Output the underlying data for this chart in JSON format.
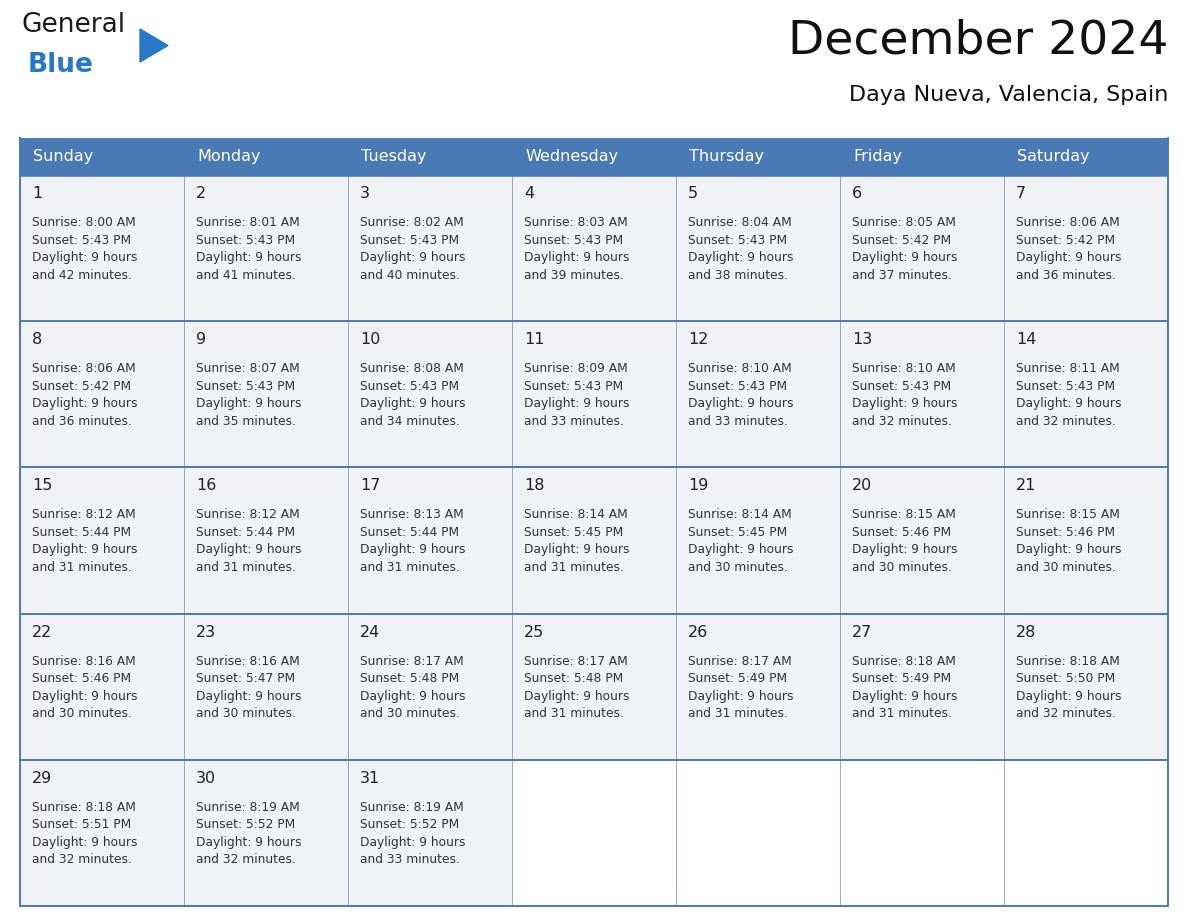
{
  "title": "December 2024",
  "subtitle": "Daya Nueva, Valencia, Spain",
  "header_color": "#4a7ab5",
  "header_text_color": "#ffffff",
  "day_names": [
    "Sunday",
    "Monday",
    "Tuesday",
    "Wednesday",
    "Thursday",
    "Friday",
    "Saturday"
  ],
  "background_color": "#ffffff",
  "cell_bg": "#f0f2f5",
  "cell_border_color": "#4a7ab5",
  "text_color": "#333333",
  "day_num_color": "#222222",
  "logo_general_color": "#1a1a1a",
  "logo_blue_color": "#2878c8",
  "weeks": [
    [
      {
        "day": 1,
        "sunrise": "8:00 AM",
        "sunset": "5:43 PM",
        "daylight_line1": "Daylight: 9 hours",
        "daylight_line2": "and 42 minutes."
      },
      {
        "day": 2,
        "sunrise": "8:01 AM",
        "sunset": "5:43 PM",
        "daylight_line1": "Daylight: 9 hours",
        "daylight_line2": "and 41 minutes."
      },
      {
        "day": 3,
        "sunrise": "8:02 AM",
        "sunset": "5:43 PM",
        "daylight_line1": "Daylight: 9 hours",
        "daylight_line2": "and 40 minutes."
      },
      {
        "day": 4,
        "sunrise": "8:03 AM",
        "sunset": "5:43 PM",
        "daylight_line1": "Daylight: 9 hours",
        "daylight_line2": "and 39 minutes."
      },
      {
        "day": 5,
        "sunrise": "8:04 AM",
        "sunset": "5:43 PM",
        "daylight_line1": "Daylight: 9 hours",
        "daylight_line2": "and 38 minutes."
      },
      {
        "day": 6,
        "sunrise": "8:05 AM",
        "sunset": "5:42 PM",
        "daylight_line1": "Daylight: 9 hours",
        "daylight_line2": "and 37 minutes."
      },
      {
        "day": 7,
        "sunrise": "8:06 AM",
        "sunset": "5:42 PM",
        "daylight_line1": "Daylight: 9 hours",
        "daylight_line2": "and 36 minutes."
      }
    ],
    [
      {
        "day": 8,
        "sunrise": "8:06 AM",
        "sunset": "5:42 PM",
        "daylight_line1": "Daylight: 9 hours",
        "daylight_line2": "and 36 minutes."
      },
      {
        "day": 9,
        "sunrise": "8:07 AM",
        "sunset": "5:43 PM",
        "daylight_line1": "Daylight: 9 hours",
        "daylight_line2": "and 35 minutes."
      },
      {
        "day": 10,
        "sunrise": "8:08 AM",
        "sunset": "5:43 PM",
        "daylight_line1": "Daylight: 9 hours",
        "daylight_line2": "and 34 minutes."
      },
      {
        "day": 11,
        "sunrise": "8:09 AM",
        "sunset": "5:43 PM",
        "daylight_line1": "Daylight: 9 hours",
        "daylight_line2": "and 33 minutes."
      },
      {
        "day": 12,
        "sunrise": "8:10 AM",
        "sunset": "5:43 PM",
        "daylight_line1": "Daylight: 9 hours",
        "daylight_line2": "and 33 minutes."
      },
      {
        "day": 13,
        "sunrise": "8:10 AM",
        "sunset": "5:43 PM",
        "daylight_line1": "Daylight: 9 hours",
        "daylight_line2": "and 32 minutes."
      },
      {
        "day": 14,
        "sunrise": "8:11 AM",
        "sunset": "5:43 PM",
        "daylight_line1": "Daylight: 9 hours",
        "daylight_line2": "and 32 minutes."
      }
    ],
    [
      {
        "day": 15,
        "sunrise": "8:12 AM",
        "sunset": "5:44 PM",
        "daylight_line1": "Daylight: 9 hours",
        "daylight_line2": "and 31 minutes."
      },
      {
        "day": 16,
        "sunrise": "8:12 AM",
        "sunset": "5:44 PM",
        "daylight_line1": "Daylight: 9 hours",
        "daylight_line2": "and 31 minutes."
      },
      {
        "day": 17,
        "sunrise": "8:13 AM",
        "sunset": "5:44 PM",
        "daylight_line1": "Daylight: 9 hours",
        "daylight_line2": "and 31 minutes."
      },
      {
        "day": 18,
        "sunrise": "8:14 AM",
        "sunset": "5:45 PM",
        "daylight_line1": "Daylight: 9 hours",
        "daylight_line2": "and 31 minutes."
      },
      {
        "day": 19,
        "sunrise": "8:14 AM",
        "sunset": "5:45 PM",
        "daylight_line1": "Daylight: 9 hours",
        "daylight_line2": "and 30 minutes."
      },
      {
        "day": 20,
        "sunrise": "8:15 AM",
        "sunset": "5:46 PM",
        "daylight_line1": "Daylight: 9 hours",
        "daylight_line2": "and 30 minutes."
      },
      {
        "day": 21,
        "sunrise": "8:15 AM",
        "sunset": "5:46 PM",
        "daylight_line1": "Daylight: 9 hours",
        "daylight_line2": "and 30 minutes."
      }
    ],
    [
      {
        "day": 22,
        "sunrise": "8:16 AM",
        "sunset": "5:46 PM",
        "daylight_line1": "Daylight: 9 hours",
        "daylight_line2": "and 30 minutes."
      },
      {
        "day": 23,
        "sunrise": "8:16 AM",
        "sunset": "5:47 PM",
        "daylight_line1": "Daylight: 9 hours",
        "daylight_line2": "and 30 minutes."
      },
      {
        "day": 24,
        "sunrise": "8:17 AM",
        "sunset": "5:48 PM",
        "daylight_line1": "Daylight: 9 hours",
        "daylight_line2": "and 30 minutes."
      },
      {
        "day": 25,
        "sunrise": "8:17 AM",
        "sunset": "5:48 PM",
        "daylight_line1": "Daylight: 9 hours",
        "daylight_line2": "and 31 minutes."
      },
      {
        "day": 26,
        "sunrise": "8:17 AM",
        "sunset": "5:49 PM",
        "daylight_line1": "Daylight: 9 hours",
        "daylight_line2": "and 31 minutes."
      },
      {
        "day": 27,
        "sunrise": "8:18 AM",
        "sunset": "5:49 PM",
        "daylight_line1": "Daylight: 9 hours",
        "daylight_line2": "and 31 minutes."
      },
      {
        "day": 28,
        "sunrise": "8:18 AM",
        "sunset": "5:50 PM",
        "daylight_line1": "Daylight: 9 hours",
        "daylight_line2": "and 32 minutes."
      }
    ],
    [
      {
        "day": 29,
        "sunrise": "8:18 AM",
        "sunset": "5:51 PM",
        "daylight_line1": "Daylight: 9 hours",
        "daylight_line2": "and 32 minutes."
      },
      {
        "day": 30,
        "sunrise": "8:19 AM",
        "sunset": "5:52 PM",
        "daylight_line1": "Daylight: 9 hours",
        "daylight_line2": "and 32 minutes."
      },
      {
        "day": 31,
        "sunrise": "8:19 AM",
        "sunset": "5:52 PM",
        "daylight_line1": "Daylight: 9 hours",
        "daylight_line2": "and 33 minutes."
      },
      null,
      null,
      null,
      null
    ]
  ]
}
